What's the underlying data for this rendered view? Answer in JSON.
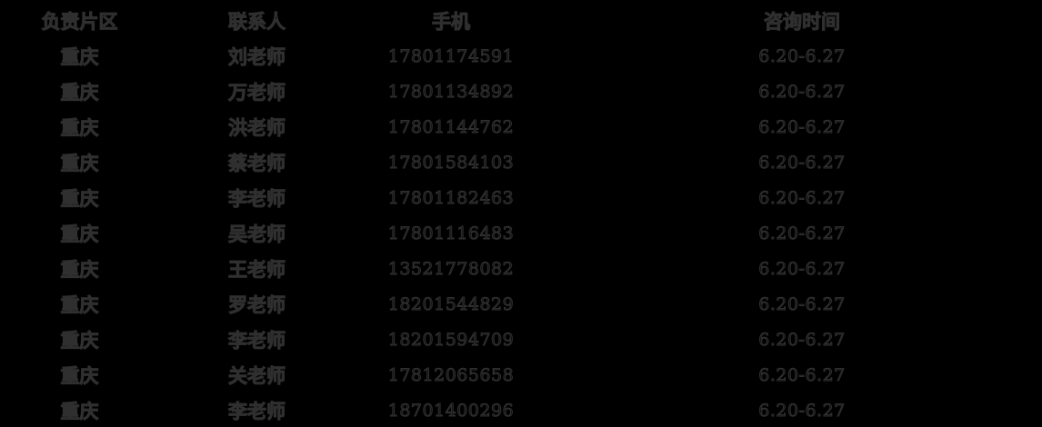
{
  "colors": {
    "background": "#000000",
    "text_fill": "#121212",
    "text_edge": "#2f2f2f"
  },
  "table": {
    "headers": {
      "area": "负责片区",
      "contact": "联系人",
      "phone": "手机",
      "time": "咨询时间"
    },
    "rows": [
      {
        "area": "重庆",
        "contact": "刘老师",
        "phone": "17801174591",
        "time": "6.20-6.27"
      },
      {
        "area": "重庆",
        "contact": "万老师",
        "phone": "17801134892",
        "time": "6.20-6.27"
      },
      {
        "area": "重庆",
        "contact": "洪老师",
        "phone": "17801144762",
        "time": "6.20-6.27"
      },
      {
        "area": "重庆",
        "contact": "蔡老师",
        "phone": "17801584103",
        "time": "6.20-6.27"
      },
      {
        "area": "重庆",
        "contact": "李老师",
        "phone": "17801182463",
        "time": "6.20-6.27"
      },
      {
        "area": "重庆",
        "contact": "吴老师",
        "phone": "17801116483",
        "time": "6.20-6.27"
      },
      {
        "area": "重庆",
        "contact": "王老师",
        "phone": "13521778082",
        "time": "6.20-6.27"
      },
      {
        "area": "重庆",
        "contact": "罗老师",
        "phone": "18201544829",
        "time": "6.20-6.27"
      },
      {
        "area": "重庆",
        "contact": "李老师",
        "phone": "18201594709",
        "time": "6.20-6.27"
      },
      {
        "area": "重庆",
        "contact": "关老师",
        "phone": "17812065658",
        "time": "6.20-6.27"
      },
      {
        "area": "重庆",
        "contact": "李老师",
        "phone": "18701400296",
        "time": "6.20-6.27"
      }
    ]
  }
}
